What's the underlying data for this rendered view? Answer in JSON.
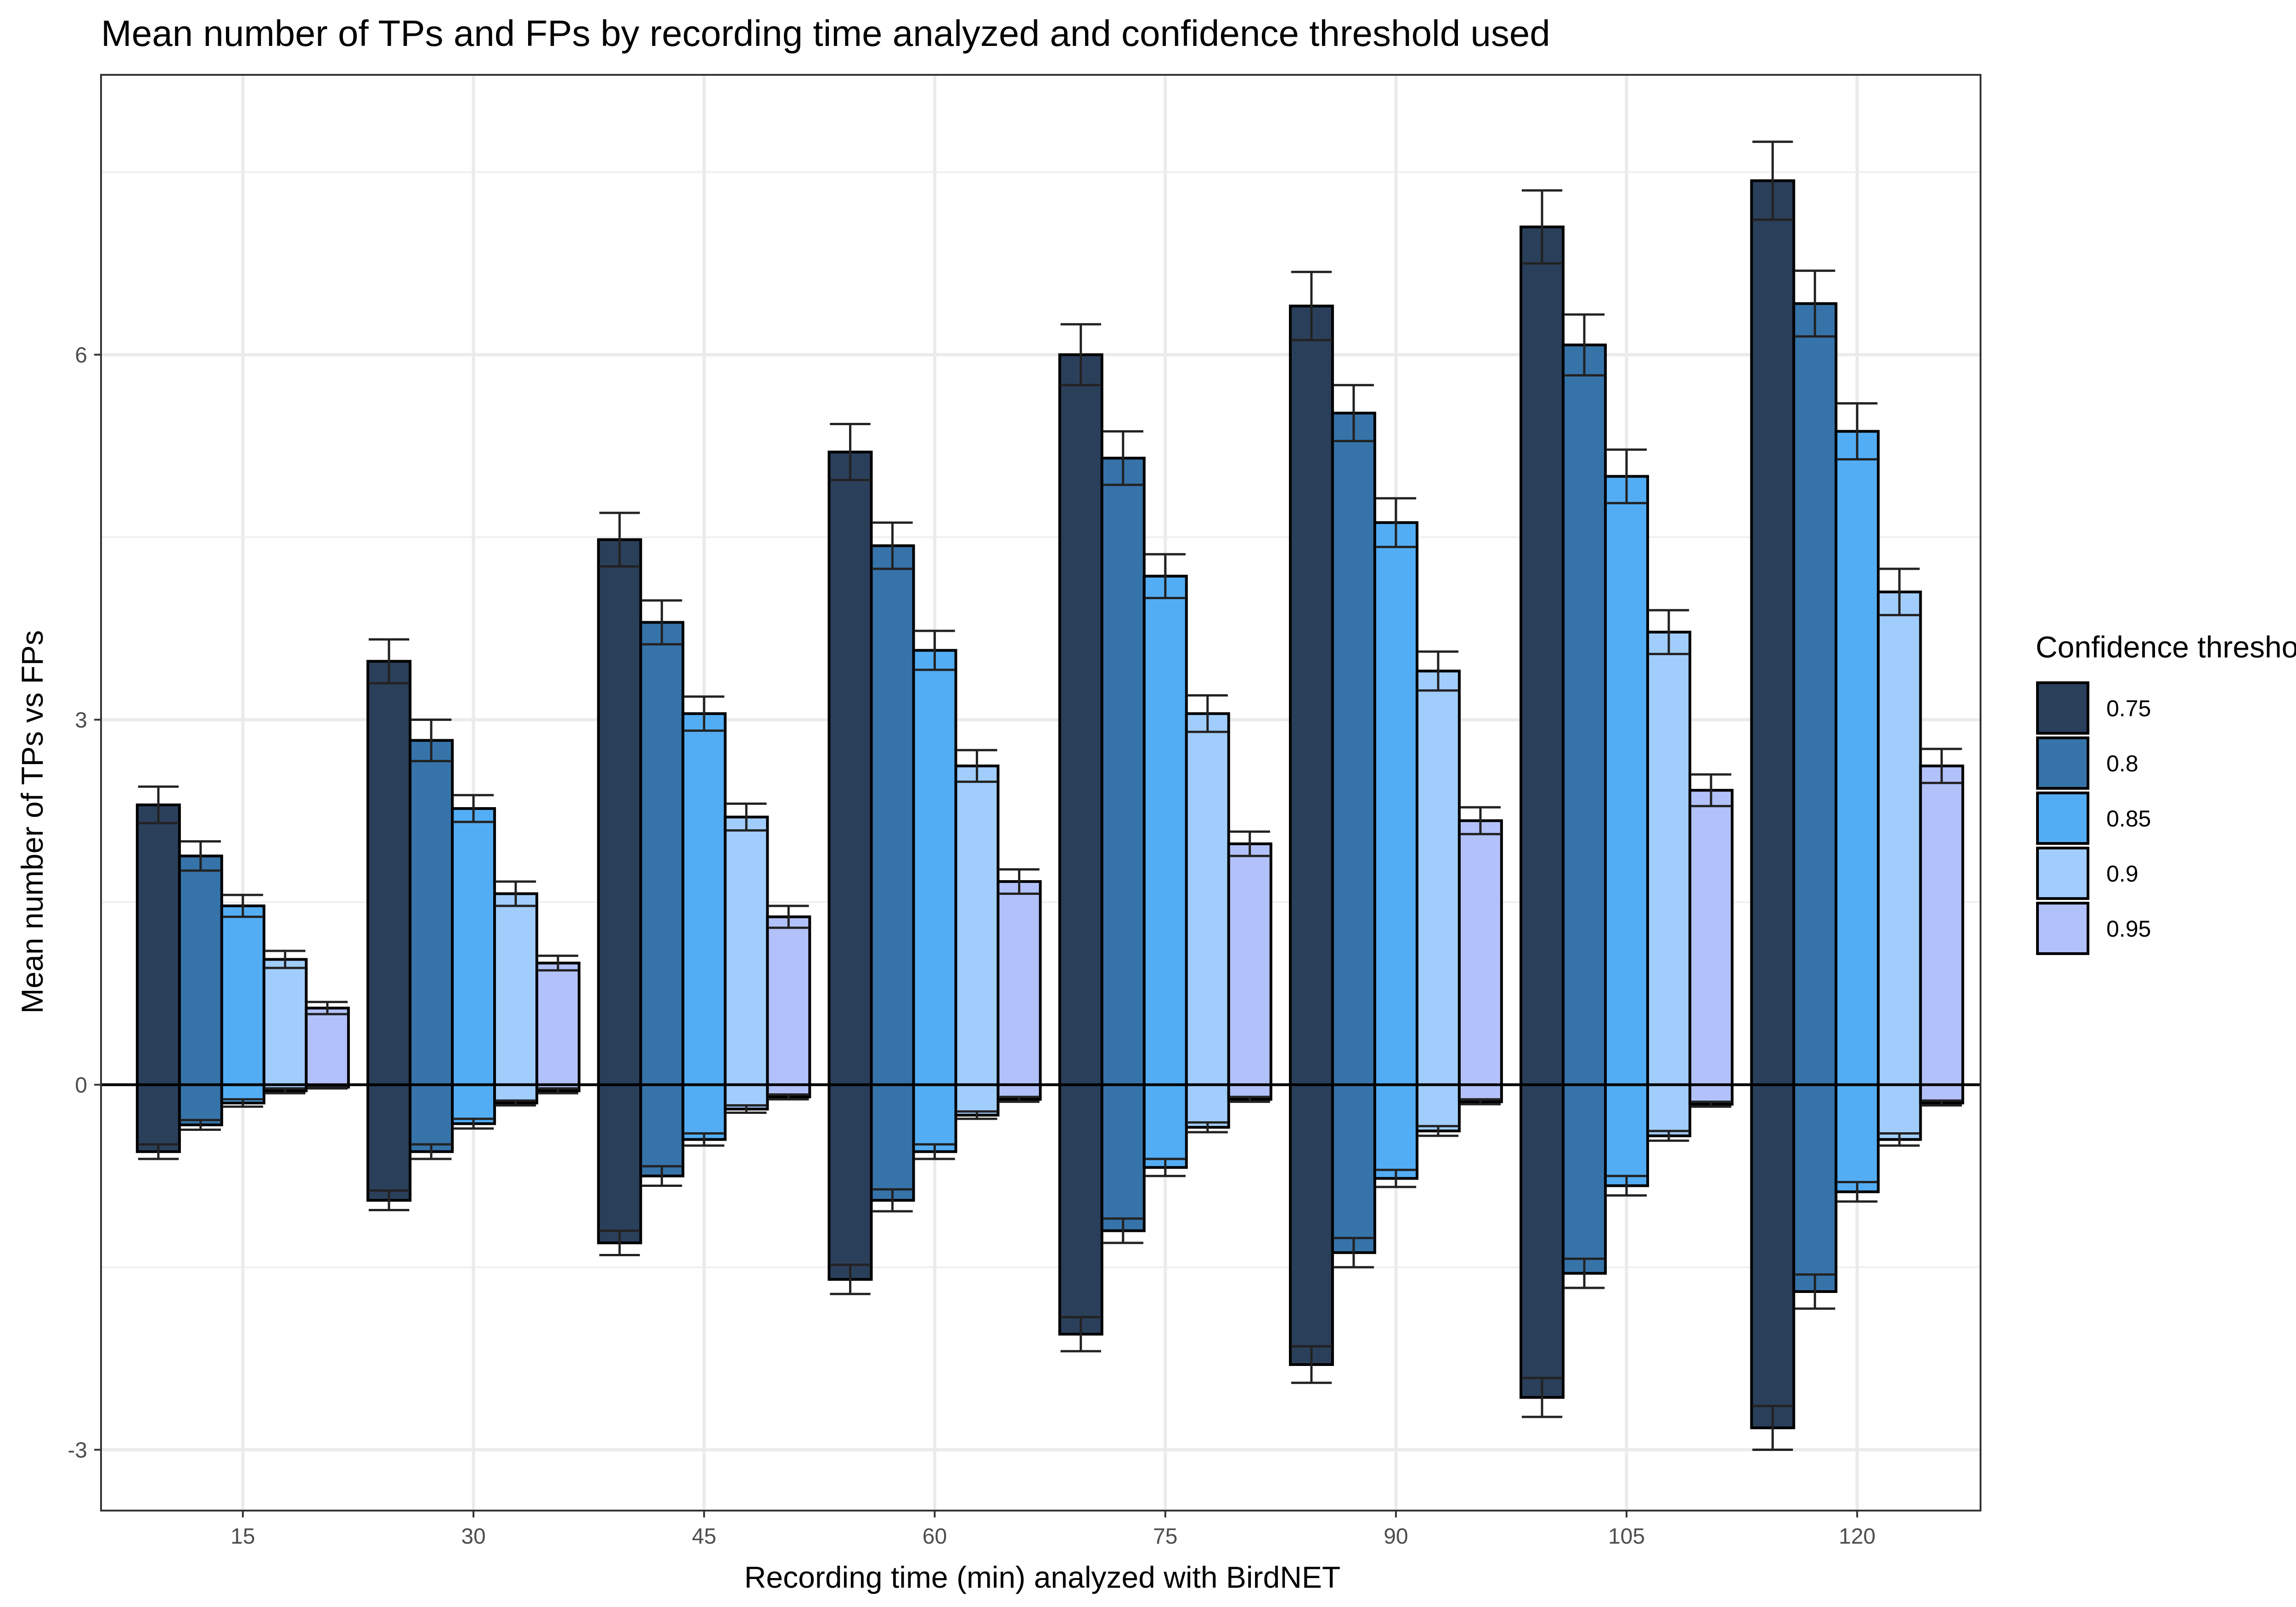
{
  "chart_data": {
    "type": "bar",
    "title": "Mean number of TPs and FPs by recording time analyzed and confidence threshold used",
    "xlabel": "Recording time (min) analyzed with BirdNET",
    "ylabel": "Mean number of TPs vs FPs",
    "categories": [
      "15",
      "30",
      "45",
      "60",
      "75",
      "90",
      "105",
      "120"
    ],
    "yticks": [
      -3,
      0,
      3,
      6
    ],
    "ytick_labels": [
      "-3",
      "0",
      "3",
      "6"
    ],
    "ylim": [
      -3.5,
      8.3
    ],
    "grid": true,
    "legend": {
      "title": "Confidence threshold",
      "position": "right"
    },
    "series": [
      {
        "name": "0.75",
        "color": "#2a3f5a",
        "tp": [
          2.3,
          3.48,
          4.48,
          5.2,
          6.0,
          6.4,
          7.05,
          7.43
        ],
        "tp_err": [
          0.15,
          0.18,
          0.22,
          0.23,
          0.25,
          0.28,
          0.3,
          0.32
        ],
        "fp": [
          -0.55,
          -0.95,
          -1.3,
          -1.6,
          -2.05,
          -2.3,
          -2.57,
          -2.82
        ],
        "fp_err": [
          0.06,
          0.08,
          0.1,
          0.12,
          0.14,
          0.15,
          0.16,
          0.18
        ]
      },
      {
        "name": "0.8",
        "color": "#3673a9",
        "tp": [
          1.88,
          2.83,
          3.8,
          4.43,
          5.15,
          5.52,
          6.08,
          6.42
        ],
        "tp_err": [
          0.12,
          0.17,
          0.18,
          0.19,
          0.22,
          0.23,
          0.25,
          0.27
        ],
        "fp": [
          -0.33,
          -0.55,
          -0.75,
          -0.95,
          -1.2,
          -1.38,
          -1.55,
          -1.7
        ],
        "fp_err": [
          0.04,
          0.06,
          0.08,
          0.09,
          0.1,
          0.12,
          0.12,
          0.14
        ]
      },
      {
        "name": "0.85",
        "color": "#53adf4",
        "tp": [
          1.47,
          2.27,
          3.05,
          3.57,
          4.18,
          4.62,
          5.0,
          5.37
        ],
        "tp_err": [
          0.09,
          0.11,
          0.14,
          0.16,
          0.18,
          0.2,
          0.22,
          0.23
        ],
        "fp": [
          -0.15,
          -0.32,
          -0.45,
          -0.55,
          -0.68,
          -0.77,
          -0.83,
          -0.88
        ],
        "fp_err": [
          0.03,
          0.04,
          0.05,
          0.06,
          0.07,
          0.07,
          0.08,
          0.08
        ]
      },
      {
        "name": "0.9",
        "color": "#a1cdfc",
        "tp": [
          1.03,
          1.57,
          2.2,
          2.62,
          3.05,
          3.4,
          3.72,
          4.05
        ],
        "tp_err": [
          0.07,
          0.1,
          0.11,
          0.13,
          0.15,
          0.16,
          0.18,
          0.19
        ],
        "fp": [
          -0.05,
          -0.15,
          -0.2,
          -0.25,
          -0.35,
          -0.38,
          -0.42,
          -0.45
        ],
        "fp_err": [
          0.02,
          0.02,
          0.03,
          0.03,
          0.04,
          0.04,
          0.04,
          0.05
        ]
      },
      {
        "name": "0.95",
        "color": "#b3c1fa",
        "tp": [
          0.63,
          1.0,
          1.38,
          1.67,
          1.98,
          2.17,
          2.42,
          2.62
        ],
        "tp_err": [
          0.05,
          0.06,
          0.09,
          0.1,
          0.1,
          0.11,
          0.13,
          0.14
        ],
        "fp": [
          -0.02,
          -0.05,
          -0.1,
          -0.12,
          -0.12,
          -0.14,
          -0.16,
          -0.15
        ],
        "fp_err": [
          0.01,
          0.02,
          0.02,
          0.02,
          0.02,
          0.02,
          0.02,
          0.02
        ]
      }
    ]
  }
}
